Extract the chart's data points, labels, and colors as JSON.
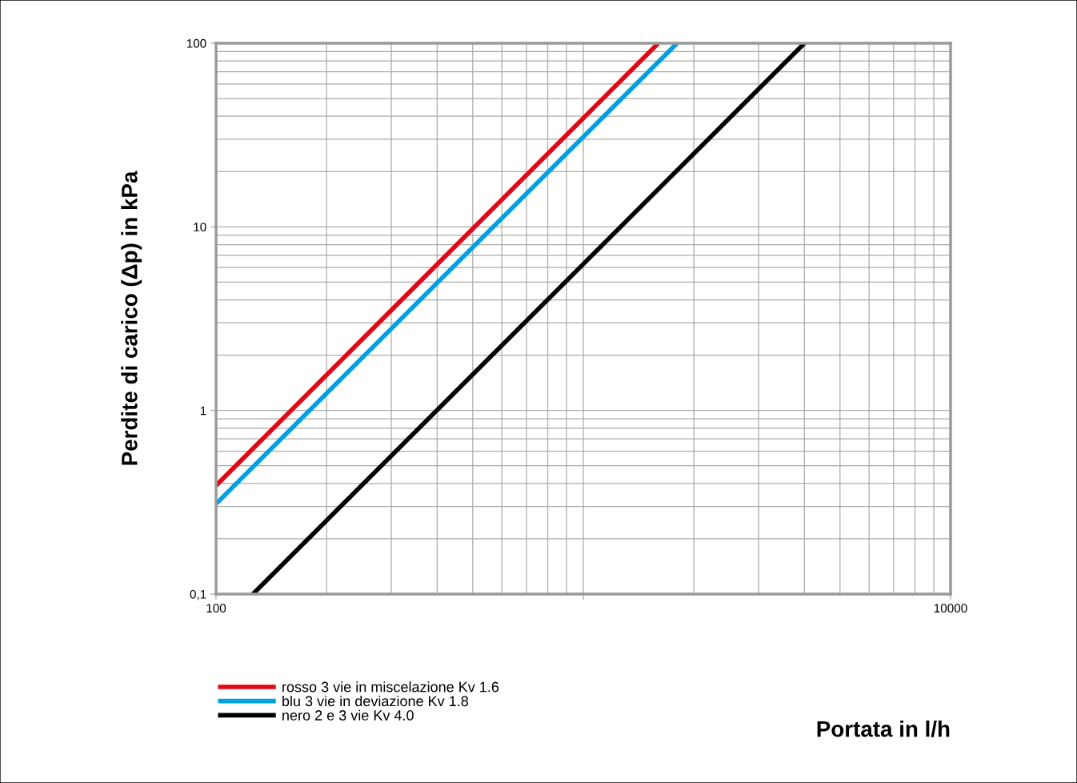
{
  "chart_data": {
    "type": "line",
    "xlabel": "Portata in l/h",
    "ylabel": "Perdite di carico (Δp) in kPa",
    "log": "xy",
    "xlim": [
      100,
      10000
    ],
    "ylim": [
      0.1,
      100
    ],
    "xticks": [
      100,
      {
        "value": 1000,
        "label": null
      },
      10000
    ],
    "yticks": [
      {
        "value": 0.1,
        "label": "0,1"
      },
      1,
      10,
      100
    ],
    "grid": true,
    "legend": "bottom left",
    "marker": "none",
    "line_style": "solid",
    "series": [
      {
        "name": "rosso 3 vie in miscelazione Kv 1.6",
        "color": "#e30613",
        "x": [
          100,
          1600
        ],
        "values": [
          0.39,
          100
        ]
      },
      {
        "name": "blu 3 vie in deviazione Kv 1.8",
        "color": "#00a0e3",
        "x": [
          100,
          1800
        ],
        "values": [
          0.31,
          100
        ]
      },
      {
        "name": "nero 2 e 3 vie Kv 4.0",
        "color": "#000000",
        "x": [
          126,
          4000
        ],
        "values": [
          0.1,
          100
        ]
      }
    ]
  }
}
